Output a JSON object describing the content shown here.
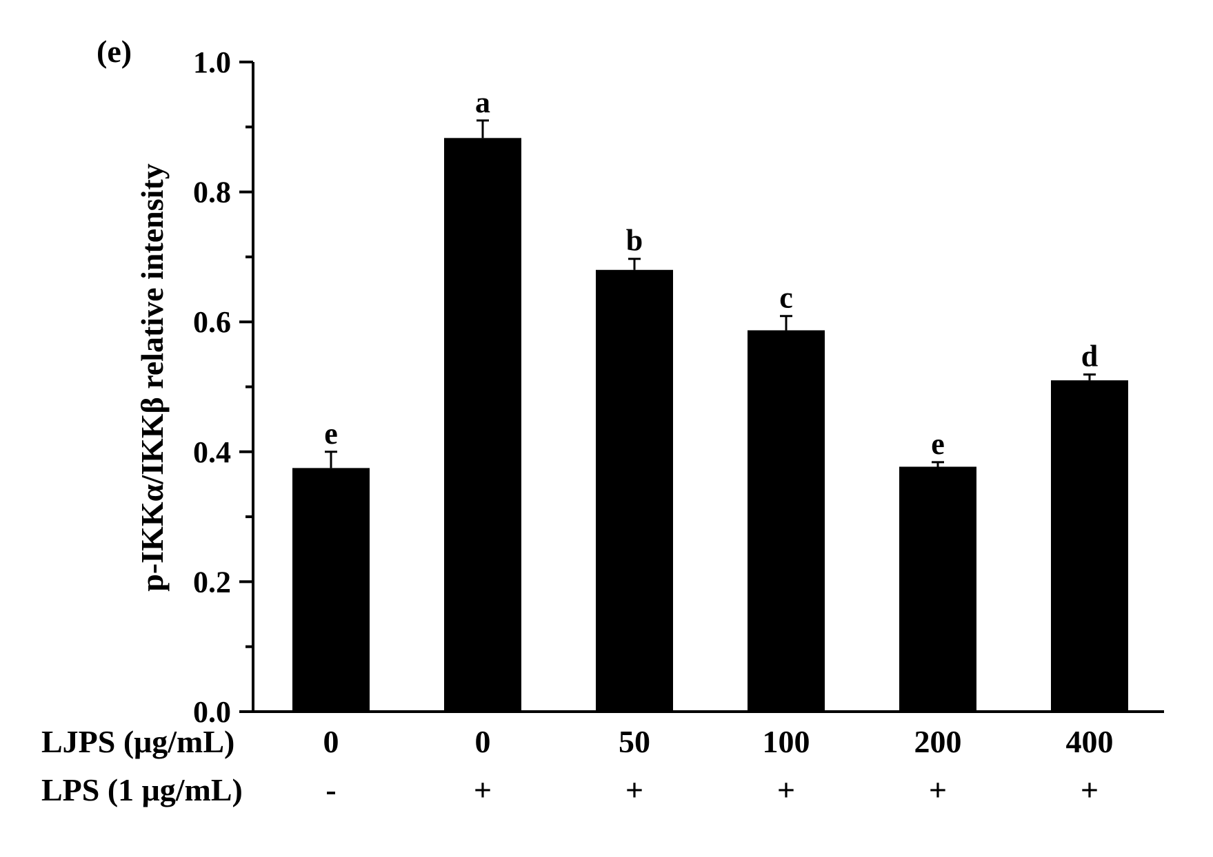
{
  "panel_label": "(e)",
  "chart_data": {
    "type": "bar",
    "ylabel": "p-IKKα/IKKβ relative intensity",
    "ylim": [
      0,
      1.0
    ],
    "yticks": [
      0.0,
      0.2,
      0.4,
      0.6,
      0.8,
      1.0
    ],
    "ytick_labels": [
      "0.0",
      "0.2",
      "0.4",
      "0.6",
      "0.8",
      "1.0"
    ],
    "categories": [
      "0",
      "0",
      "50",
      "100",
      "200",
      "400"
    ],
    "values": [
      0.375,
      0.883,
      0.68,
      0.587,
      0.377,
      0.51
    ],
    "errors": [
      0.025,
      0.027,
      0.017,
      0.022,
      0.007,
      0.009
    ],
    "significance": [
      "e",
      "a",
      "b",
      "c",
      "e",
      "d"
    ],
    "bar_color": "#000000",
    "grid": false,
    "treatment_rows": [
      {
        "label": "LJPS (μg/mL)",
        "values": [
          "0",
          "0",
          "50",
          "100",
          "200",
          "400"
        ]
      },
      {
        "label": "LPS (1 μg/mL)",
        "values": [
          "-",
          "+",
          "+",
          "+",
          "+",
          "+"
        ]
      }
    ]
  }
}
